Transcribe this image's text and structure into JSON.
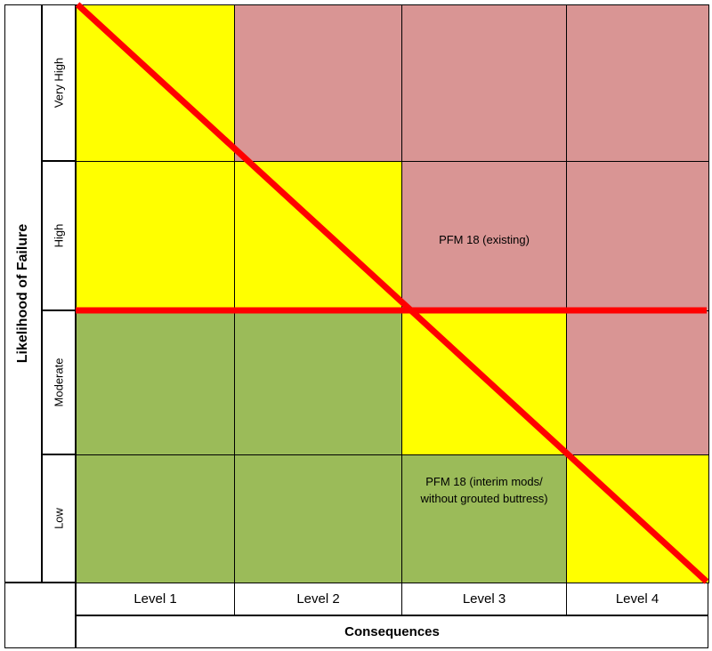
{
  "y_axis_title": "Likelihood of Failure",
  "x_axis_title": "Consequences",
  "rows": [
    "Very High",
    "High",
    "Moderate",
    "Low"
  ],
  "columns": [
    "Level 1",
    "Level 2",
    "Level 3",
    "Level 4"
  ],
  "colors": {
    "yellow": "#ffff00",
    "red": "#d99594",
    "green": "#9bbb59",
    "line": "#ff0000"
  },
  "matrix": [
    [
      "yellow",
      "red",
      "red",
      "red"
    ],
    [
      "yellow",
      "yellow",
      "red",
      "red"
    ],
    [
      "green",
      "green",
      "yellow",
      "red"
    ],
    [
      "green",
      "green",
      "green",
      "yellow"
    ]
  ],
  "annotations": {
    "existing": "PFM 18 (existing)",
    "interim_line1": "PFM 18 (interim mods/",
    "interim_line2": "without grouted buttress)"
  }
}
